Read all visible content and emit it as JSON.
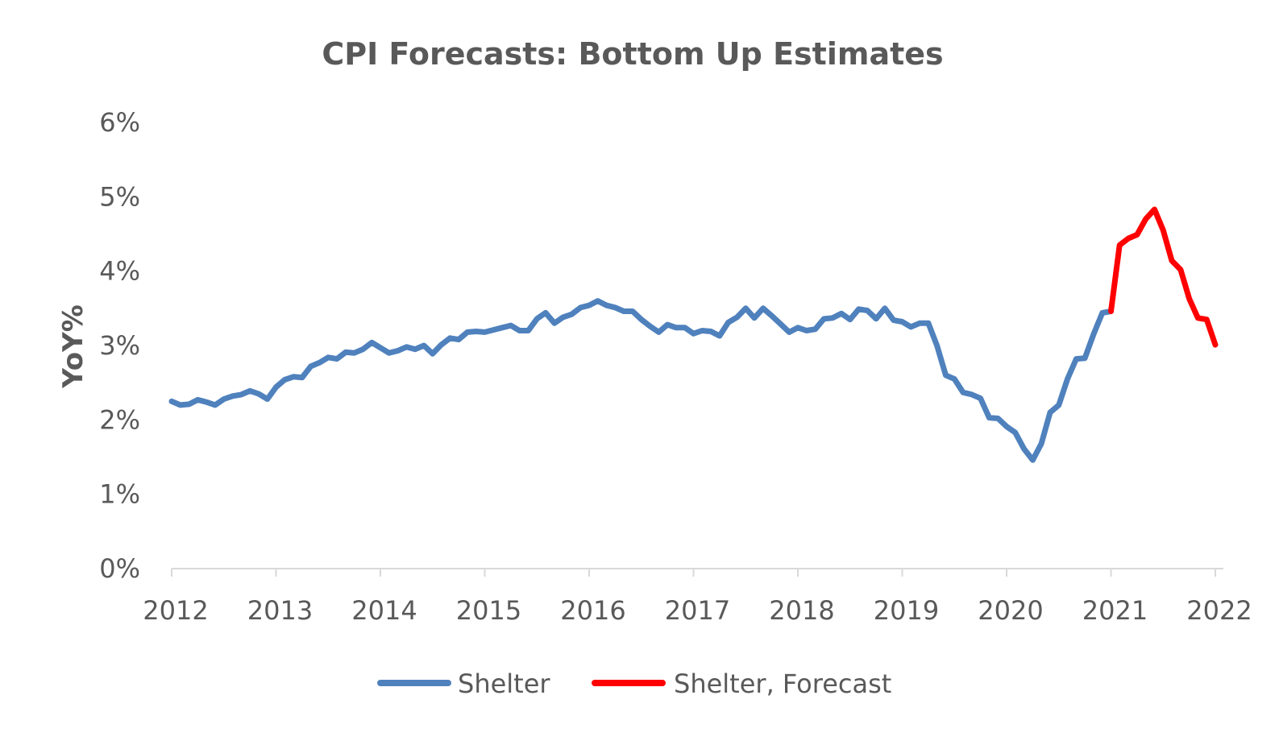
{
  "chart_data": {
    "type": "line",
    "title": "CPI Forecasts: Bottom Up Estimates",
    "xlabel": "",
    "ylabel": "YoY%",
    "xlim": [
      2012,
      2022
    ],
    "ylim": [
      0,
      6
    ],
    "x_ticks": [
      "2012",
      "2013",
      "2014",
      "2015",
      "2016",
      "2017",
      "2018",
      "2019",
      "2020",
      "2021",
      "2022"
    ],
    "y_ticks": [
      "0%",
      "1%",
      "2%",
      "3%",
      "4%",
      "5%",
      "6%"
    ],
    "grid": false,
    "legend_position": "bottom",
    "series": [
      {
        "name": "Shelter",
        "color": "#4f81bd",
        "x": [
          2012.0,
          2012.083,
          2012.167,
          2012.25,
          2012.333,
          2012.417,
          2012.5,
          2012.583,
          2012.667,
          2012.75,
          2012.833,
          2012.917,
          2013.0,
          2013.083,
          2013.167,
          2013.25,
          2013.333,
          2013.417,
          2013.5,
          2013.583,
          2013.667,
          2013.75,
          2013.833,
          2013.917,
          2014.0,
          2014.083,
          2014.167,
          2014.25,
          2014.333,
          2014.417,
          2014.5,
          2014.583,
          2014.667,
          2014.75,
          2014.833,
          2014.917,
          2015.0,
          2015.083,
          2015.167,
          2015.25,
          2015.333,
          2015.417,
          2015.5,
          2015.583,
          2015.667,
          2015.75,
          2015.833,
          2015.917,
          2016.0,
          2016.083,
          2016.167,
          2016.25,
          2016.333,
          2016.417,
          2016.5,
          2016.583,
          2016.667,
          2016.75,
          2016.833,
          2016.917,
          2017.0,
          2017.083,
          2017.167,
          2017.25,
          2017.333,
          2017.417,
          2017.5,
          2017.583,
          2017.667,
          2017.75,
          2017.833,
          2017.917,
          2018.0,
          2018.083,
          2018.167,
          2018.25,
          2018.333,
          2018.417,
          2018.5,
          2018.583,
          2018.667,
          2018.75,
          2018.833,
          2018.917,
          2019.0,
          2019.083,
          2019.167,
          2019.25,
          2019.333,
          2019.417,
          2019.5,
          2019.583,
          2019.667,
          2019.75,
          2019.833,
          2019.917,
          2020.0,
          2020.083,
          2020.167,
          2020.25,
          2020.333,
          2020.417,
          2020.5,
          2020.583,
          2020.667,
          2020.75,
          2020.833,
          2020.917,
          2021.0
        ],
        "values": [
          2.25,
          2.2,
          2.21,
          2.27,
          2.24,
          2.2,
          2.28,
          2.32,
          2.34,
          2.39,
          2.35,
          2.28,
          2.44,
          2.54,
          2.58,
          2.57,
          2.72,
          2.77,
          2.84,
          2.82,
          2.91,
          2.9,
          2.95,
          3.04,
          2.97,
          2.9,
          2.93,
          2.98,
          2.95,
          3.0,
          2.89,
          3.01,
          3.1,
          3.08,
          3.18,
          3.19,
          3.18,
          3.21,
          3.24,
          3.27,
          3.2,
          3.2,
          3.36,
          3.44,
          3.3,
          3.38,
          3.42,
          3.51,
          3.54,
          3.6,
          3.54,
          3.51,
          3.46,
          3.46,
          3.35,
          3.26,
          3.18,
          3.28,
          3.24,
          3.24,
          3.16,
          3.2,
          3.19,
          3.13,
          3.31,
          3.38,
          3.5,
          3.37,
          3.5,
          3.4,
          3.29,
          3.18,
          3.24,
          3.2,
          3.22,
          3.36,
          3.37,
          3.43,
          3.35,
          3.49,
          3.47,
          3.36,
          3.5,
          3.34,
          3.32,
          3.25,
          3.3,
          3.3,
          3.0,
          2.6,
          2.55,
          2.37,
          2.34,
          2.29,
          2.03,
          2.02,
          1.91,
          1.83,
          1.61,
          1.46,
          1.68,
          2.1,
          2.2,
          2.55,
          2.82,
          2.83,
          3.15,
          3.44,
          3.46
        ]
      },
      {
        "name": "Shelter, Forecast",
        "color": "#ff0000",
        "x": [
          2021.0,
          2021.083,
          2021.167,
          2021.25,
          2021.333,
          2021.417,
          2021.5,
          2021.583,
          2021.667,
          2021.75,
          2021.833,
          2021.917,
          2022.0
        ],
        "values": [
          3.46,
          4.35,
          4.44,
          4.49,
          4.7,
          4.83,
          4.55,
          4.14,
          4.02,
          3.63,
          3.37,
          3.35,
          3.01
        ]
      }
    ]
  }
}
